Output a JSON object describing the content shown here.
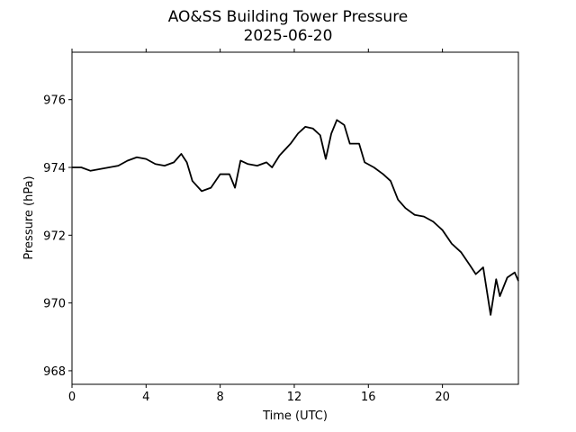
{
  "chart_data": {
    "type": "line",
    "title": "AO&SS Building Tower Pressure",
    "subtitle": "2025-06-20",
    "x_label": "Time (UTC)",
    "y_label": "Pressure (hPa)",
    "xlim": [
      0,
      24.1
    ],
    "ylim": [
      967.6,
      977.4
    ],
    "xticks": [
      0,
      4,
      8,
      12,
      16,
      20
    ],
    "yticks": [
      968,
      970,
      972,
      974,
      976
    ],
    "grid": false,
    "series": [
      {
        "color": "#000000",
        "x": [
          0,
          0.5,
          1,
          1.5,
          2,
          2.5,
          3,
          3.5,
          4,
          4.5,
          5,
          5.5,
          5.9,
          6.2,
          6.5,
          7,
          7.5,
          8,
          8.5,
          8.8,
          9.1,
          9.5,
          10,
          10.5,
          10.8,
          11.2,
          11.8,
          12.2,
          12.6,
          13,
          13.4,
          13.7,
          14,
          14.3,
          14.7,
          15,
          15.5,
          15.8,
          16.3,
          16.8,
          17.2,
          17.6,
          18,
          18.5,
          19,
          19.5,
          20,
          20.5,
          21,
          21.5,
          21.8,
          22.2,
          22.6,
          22.9,
          23.1,
          23.5,
          23.9,
          24.1
        ],
        "values": [
          974.0,
          974.0,
          973.9,
          973.95,
          974.0,
          974.05,
          974.2,
          974.3,
          974.25,
          974.1,
          974.05,
          974.15,
          974.4,
          974.15,
          973.6,
          973.3,
          973.4,
          973.8,
          973.8,
          973.4,
          974.2,
          974.1,
          974.05,
          974.15,
          974.0,
          974.35,
          974.7,
          975.0,
          975.2,
          975.15,
          974.95,
          974.25,
          975.0,
          975.4,
          975.25,
          974.7,
          974.7,
          974.15,
          974.0,
          973.8,
          973.6,
          973.05,
          972.8,
          972.6,
          972.55,
          972.4,
          972.15,
          971.75,
          971.5,
          971.1,
          970.85,
          971.05,
          969.65,
          970.7,
          970.2,
          970.75,
          970.9,
          970.65
        ]
      }
    ]
  }
}
